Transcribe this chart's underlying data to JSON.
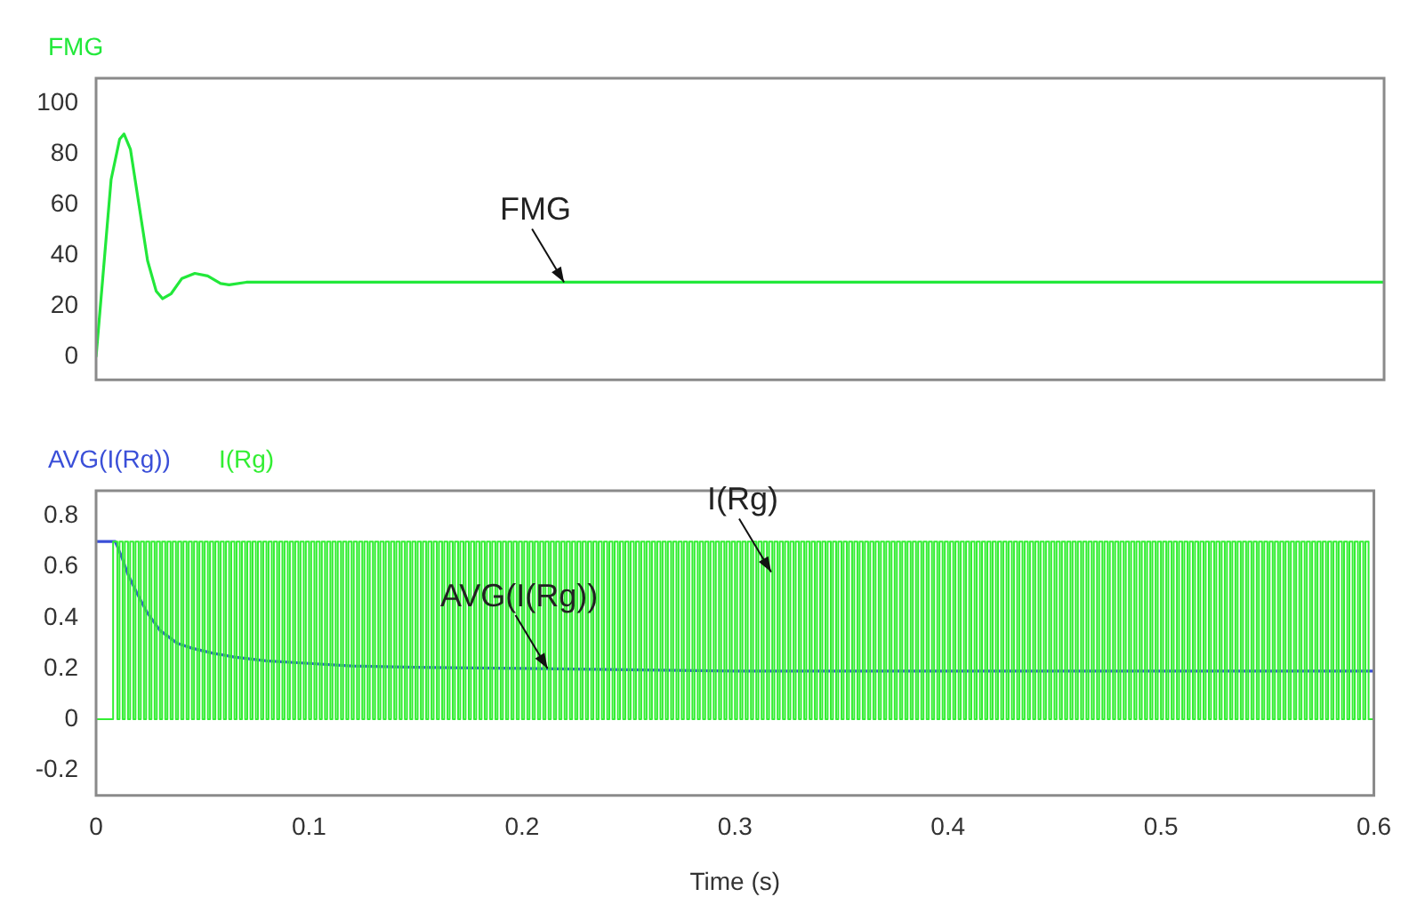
{
  "chart_data": [
    {
      "type": "line",
      "legend": "top left",
      "tick_labels": "y",
      "xlim": [
        0,
        0.6
      ],
      "ylim": [
        -9,
        110
      ],
      "yticks": [
        0,
        20,
        40,
        60,
        80,
        100
      ],
      "series": [
        {
          "name": "FMG",
          "color": "#22e83a",
          "x": [
            0,
            0.003,
            0.007,
            0.011,
            0.013,
            0.016,
            0.02,
            0.024,
            0.028,
            0.031,
            0.035,
            0.04,
            0.046,
            0.052,
            0.058,
            0.062,
            0.07,
            0.1,
            0.2,
            0.3,
            0.4,
            0.5,
            0.6
          ],
          "values": [
            0,
            30,
            70,
            86,
            88,
            82,
            60,
            38,
            26,
            23,
            25,
            31,
            33,
            32,
            29,
            28.5,
            29.5,
            29.5,
            29.5,
            29.5,
            29.5,
            29.5,
            29.5
          ]
        }
      ],
      "annotations": [
        {
          "text": "FMG",
          "x": 0.218,
          "y": 29.5
        }
      ]
    },
    {
      "type": "line",
      "legend": "top left",
      "xlabel": "Time (s)",
      "xlim": [
        0,
        0.6
      ],
      "xticks": [
        0,
        0.1,
        0.2,
        0.3,
        0.4,
        0.5,
        0.6
      ],
      "ylim": [
        -0.3,
        0.9
      ],
      "yticks": [
        -0.2,
        0,
        0.2,
        0.4,
        0.6,
        0.8
      ],
      "series": [
        {
          "name": "AVG(I(Rg))",
          "color": "#3a4fd8",
          "x": [
            0,
            0.009,
            0.012,
            0.015,
            0.019,
            0.024,
            0.03,
            0.038,
            0.045,
            0.055,
            0.065,
            0.08,
            0.1,
            0.12,
            0.15,
            0.2,
            0.25,
            0.3,
            0.4,
            0.5,
            0.6
          ],
          "values": [
            0.7,
            0.7,
            0.64,
            0.57,
            0.5,
            0.42,
            0.35,
            0.3,
            0.28,
            0.26,
            0.245,
            0.23,
            0.22,
            0.21,
            0.205,
            0.2,
            0.195,
            0.19,
            0.19,
            0.19,
            0.19
          ]
        },
        {
          "name": "I(Rg)",
          "type": "step",
          "color": "#33ee33",
          "x": [
            0,
            0.008,
            0.01,
            0.011,
            0.0125,
            0.0135,
            0.015,
            0.016,
            0.0175,
            0.0185,
            0.02,
            0.021,
            0.0225,
            0.0235,
            0.025,
            0.026,
            0.0275,
            0.0285,
            0.03,
            0.031,
            0.0325,
            0.0335,
            0.035,
            0.036,
            0.0375,
            0.0385,
            0.04,
            0.041,
            0.0425,
            0.0435,
            0.045,
            0.046,
            0.0475,
            0.0485,
            0.05,
            0.051,
            0.0525,
            0.0535,
            0.055,
            0.056,
            0.0575,
            0.0585,
            0.06,
            0.061,
            0.0625,
            0.0635,
            0.065,
            0.066,
            0.0675,
            0.0685,
            0.07,
            0.071,
            0.0725,
            0.0735,
            0.075,
            0.076,
            0.0775,
            0.0785,
            0.08,
            0.081,
            0.0825,
            0.0835,
            0.085,
            0.086,
            0.0875,
            0.0885,
            0.09,
            0.091,
            0.0925,
            0.0935,
            0.095,
            0.096,
            0.0975,
            0.0985,
            0.1,
            0.101,
            0.1025,
            0.1035,
            0.105,
            0.106,
            0.1075,
            0.1085,
            0.11,
            0.111,
            0.1125,
            0.1135,
            0.115,
            0.116,
            0.1175,
            0.1185,
            0.12,
            0.121,
            0.1225,
            0.1235,
            0.125,
            0.126,
            0.1275,
            0.1285,
            0.13,
            0.131,
            0.1325,
            0.1335,
            0.135,
            0.136,
            0.1375,
            0.1385,
            0.14,
            0.141,
            0.1425,
            0.1435,
            0.145,
            0.146,
            0.1475,
            0.1485,
            0.15,
            0.151,
            0.1525,
            0.1535,
            0.155,
            0.156,
            0.1575,
            0.1585,
            0.16,
            0.161,
            0.1625,
            0.1635,
            0.165,
            0.166,
            0.1675,
            0.1685,
            0.17,
            0.171,
            0.1725,
            0.1735,
            0.175,
            0.176,
            0.1775,
            0.1785,
            0.18,
            0.181,
            0.1825,
            0.1835,
            0.185,
            0.186,
            0.1875,
            0.1885,
            0.19,
            0.191,
            0.1925,
            0.1935,
            0.195,
            0.196,
            0.1975,
            0.1985,
            0.2,
            0.201,
            0.2025,
            0.2035,
            0.205,
            0.206,
            0.2075,
            0.2085,
            0.21,
            0.211,
            0.2125,
            0.2135,
            0.215,
            0.216,
            0.2175,
            0.2185,
            0.22,
            0.221,
            0.2225,
            0.2235,
            0.225,
            0.226,
            0.2275,
            0.2285,
            0.23,
            0.231,
            0.2325,
            0.2335,
            0.235,
            0.236,
            0.2375,
            0.2385,
            0.24,
            0.241,
            0.2425,
            0.2435,
            0.245,
            0.246,
            0.2475,
            0.2485,
            0.25,
            0.251,
            0.2525,
            0.2535,
            0.255,
            0.256,
            0.2575,
            0.2585,
            0.26,
            0.261,
            0.2625,
            0.2635,
            0.265,
            0.266,
            0.2675,
            0.2685,
            0.27,
            0.271,
            0.2725,
            0.2735,
            0.275,
            0.276,
            0.2775,
            0.2785,
            0.28,
            0.281,
            0.2825,
            0.2835,
            0.285,
            0.286,
            0.2875,
            0.2885,
            0.29,
            0.291,
            0.2925,
            0.2935,
            0.295,
            0.296,
            0.2975,
            0.2985,
            0.3,
            0.301,
            0.3025,
            0.3035,
            0.305,
            0.306,
            0.3075,
            0.3085,
            0.31,
            0.311,
            0.3125,
            0.3135,
            0.315,
            0.316,
            0.3175,
            0.3185,
            0.32,
            0.321,
            0.3225,
            0.3235,
            0.325,
            0.326,
            0.3275,
            0.3285,
            0.33,
            0.331,
            0.3325,
            0.3335,
            0.335,
            0.336,
            0.3375,
            0.3385,
            0.34,
            0.341,
            0.3425,
            0.3435,
            0.345,
            0.346,
            0.3475,
            0.3485,
            0.35,
            0.351,
            0.3525,
            0.3535,
            0.355,
            0.356,
            0.3575,
            0.3585,
            0.36,
            0.361,
            0.3625,
            0.3635,
            0.365,
            0.366,
            0.3675,
            0.3685,
            0.37,
            0.371,
            0.3725,
            0.3735,
            0.375,
            0.376,
            0.3775,
            0.3785,
            0.38,
            0.381,
            0.3825,
            0.3835,
            0.385,
            0.386,
            0.3875,
            0.3885,
            0.39,
            0.391,
            0.3925,
            0.3935,
            0.395,
            0.396,
            0.3975,
            0.3985,
            0.4,
            0.401,
            0.4025,
            0.4035,
            0.405,
            0.406,
            0.4075,
            0.4085,
            0.41,
            0.411,
            0.4125,
            0.4135,
            0.415,
            0.416,
            0.4175,
            0.4185,
            0.42,
            0.421,
            0.4225,
            0.4235,
            0.425,
            0.426,
            0.4275,
            0.4285,
            0.43,
            0.431,
            0.4325,
            0.4335,
            0.435,
            0.436,
            0.4375,
            0.4385,
            0.44,
            0.441,
            0.4425,
            0.4435,
            0.445,
            0.446,
            0.4475,
            0.4485,
            0.45,
            0.451,
            0.4525,
            0.4535,
            0.455,
            0.456,
            0.4575,
            0.4585,
            0.46,
            0.461,
            0.4625,
            0.4635,
            0.465,
            0.466,
            0.4675,
            0.4685,
            0.47,
            0.471,
            0.4725,
            0.4735,
            0.475,
            0.476,
            0.4775,
            0.4785,
            0.48,
            0.481,
            0.4825,
            0.4835,
            0.485,
            0.486,
            0.4875,
            0.4885,
            0.49,
            0.491,
            0.4925,
            0.4935,
            0.495,
            0.496,
            0.4975,
            0.4985,
            0.5,
            0.501,
            0.5025,
            0.5035,
            0.505,
            0.506,
            0.5075,
            0.5085,
            0.51,
            0.511,
            0.5125,
            0.5135,
            0.515,
            0.516,
            0.5175,
            0.5185,
            0.52,
            0.521,
            0.5225,
            0.5235,
            0.525,
            0.526,
            0.5275,
            0.5285,
            0.53,
            0.531,
            0.5325,
            0.5335,
            0.535,
            0.536,
            0.5375,
            0.5385,
            0.54,
            0.541,
            0.5425,
            0.5435,
            0.545,
            0.546,
            0.5475,
            0.5485,
            0.55,
            0.551,
            0.5525,
            0.5535,
            0.555,
            0.556,
            0.5575,
            0.5585,
            0.56,
            0.561,
            0.5625,
            0.5635,
            0.565,
            0.566,
            0.5675,
            0.5685,
            0.57,
            0.571,
            0.5725,
            0.5735,
            0.575,
            0.576,
            0.5775,
            0.5785,
            0.58,
            0.581,
            0.5825,
            0.5835,
            0.585,
            0.586,
            0.5875,
            0.5885,
            0.59,
            0.591,
            0.5925,
            0.5935,
            0.595,
            0.596,
            0.5975,
            0.5985,
            0.6
          ],
          "values": [
            0.7,
            0,
            0.7,
            0,
            0.7,
            0,
            0.7,
            0,
            0.7,
            0,
            0.7,
            0,
            0.7,
            0,
            0.7,
            0,
            0.7,
            0,
            0.7,
            0,
            0.7,
            0,
            0.7,
            0,
            0.7,
            0,
            0.7,
            0,
            0.7,
            0,
            0.7,
            0,
            0.7,
            0,
            0.7,
            0,
            0.7,
            0,
            0.7,
            0,
            0.7,
            0,
            0.7,
            0,
            0.7,
            0,
            0.7,
            0,
            0.7,
            0,
            0.7,
            0,
            0.7,
            0,
            0.7,
            0,
            0.7,
            0,
            0.7,
            0,
            0.7,
            0,
            0.7,
            0,
            0.7,
            0,
            0.7,
            0,
            0.7,
            0,
            0.7,
            0,
            0.7,
            0,
            0.7,
            0,
            0.7,
            0,
            0.7,
            0,
            0.7,
            0,
            0.7,
            0,
            0.7,
            0,
            0.7,
            0,
            0.7,
            0,
            0.7,
            0,
            0.7,
            0,
            0.7,
            0,
            0.7,
            0,
            0.7,
            0,
            0.7,
            0,
            0.7,
            0,
            0.7,
            0,
            0.7,
            0,
            0.7,
            0,
            0.7,
            0,
            0.7,
            0,
            0.7,
            0,
            0.7,
            0,
            0.7,
            0,
            0.7,
            0,
            0.7,
            0,
            0.7,
            0,
            0.7,
            0,
            0.7,
            0,
            0.7,
            0,
            0.7,
            0,
            0.7,
            0,
            0.7,
            0,
            0.7,
            0,
            0.7,
            0,
            0.7,
            0,
            0.7,
            0,
            0.7,
            0,
            0.7,
            0,
            0.7,
            0,
            0.7,
            0,
            0.7,
            0,
            0.7,
            0,
            0.7,
            0,
            0.7,
            0,
            0.7,
            0,
            0.7,
            0,
            0.7,
            0,
            0.7,
            0,
            0.7,
            0,
            0.7,
            0,
            0.7,
            0,
            0.7,
            0,
            0.7,
            0,
            0.7,
            0,
            0.7,
            0,
            0.7,
            0,
            0.7,
            0,
            0.7,
            0,
            0.7,
            0,
            0.7,
            0,
            0.7,
            0,
            0.7,
            0,
            0.7,
            0,
            0.7,
            0,
            0.7,
            0,
            0.7,
            0,
            0.7,
            0,
            0.7,
            0,
            0.7,
            0,
            0.7,
            0,
            0.7,
            0,
            0.7,
            0,
            0.7,
            0,
            0.7,
            0,
            0.7,
            0,
            0.7,
            0,
            0.7,
            0,
            0.7,
            0,
            0.7,
            0,
            0.7,
            0,
            0.7,
            0,
            0.7,
            0,
            0.7,
            0,
            0.7,
            0,
            0.7,
            0,
            0.7,
            0,
            0.7,
            0,
            0.7,
            0,
            0.7,
            0,
            0.7,
            0,
            0.7,
            0,
            0.7,
            0,
            0.7,
            0,
            0.7,
            0,
            0.7,
            0,
            0.7,
            0,
            0.7,
            0,
            0.7,
            0,
            0.7,
            0,
            0.7,
            0,
            0.7,
            0,
            0.7,
            0,
            0.7,
            0,
            0.7,
            0,
            0.7,
            0,
            0.7,
            0,
            0.7,
            0,
            0.7,
            0,
            0.7,
            0,
            0.7,
            0,
            0.7,
            0,
            0.7,
            0,
            0.7,
            0,
            0.7,
            0,
            0.7,
            0,
            0.7,
            0,
            0.7,
            0,
            0.7,
            0,
            0.7,
            0,
            0.7,
            0,
            0.7,
            0,
            0.7,
            0,
            0.7,
            0,
            0.7,
            0,
            0.7,
            0,
            0.7,
            0,
            0.7,
            0,
            0.7,
            0,
            0.7,
            0,
            0.7,
            0,
            0.7,
            0,
            0.7,
            0,
            0.7,
            0,
            0.7,
            0,
            0.7,
            0,
            0.7,
            0,
            0.7,
            0,
            0.7,
            0,
            0.7,
            0,
            0.7,
            0,
            0.7,
            0,
            0.7,
            0,
            0.7,
            0,
            0.7,
            0,
            0.7,
            0,
            0.7,
            0,
            0.7,
            0,
            0.7,
            0,
            0.7,
            0,
            0.7,
            0,
            0.7,
            0,
            0.7,
            0,
            0.7,
            0,
            0.7,
            0,
            0.7,
            0,
            0.7,
            0,
            0.7,
            0,
            0.7,
            0,
            0.7,
            0,
            0.7,
            0,
            0.7,
            0,
            0.7,
            0,
            0.7,
            0,
            0.7,
            0,
            0.7,
            0,
            0.7,
            0,
            0.7,
            0,
            0.7,
            0,
            0.7,
            0,
            0.7,
            0,
            0.7,
            0,
            0.7,
            0,
            0.7,
            0,
            0.7,
            0,
            0.7,
            0,
            0.7,
            0,
            0.7,
            0,
            0.7,
            0,
            0.7,
            0,
            0.7,
            0,
            0.7,
            0,
            0.7,
            0,
            0.7,
            0,
            0.7,
            0,
            0.7,
            0,
            0.7,
            0,
            0.7,
            0,
            0.7,
            0,
            0.7,
            0,
            0.7,
            0,
            0.7,
            0,
            0.7,
            0,
            0.7,
            0,
            0.7,
            0,
            0.7,
            0,
            0.7,
            0,
            0.7,
            0,
            0.7,
            0,
            0.7,
            0,
            0.7,
            0,
            0
          ]
        }
      ],
      "annotations": [
        {
          "text": "AVG(I(Rg))",
          "x": 0.212,
          "y": 0.2
        },
        {
          "text": "I(Rg)",
          "x": 0.317,
          "y": 0.58
        }
      ]
    }
  ]
}
